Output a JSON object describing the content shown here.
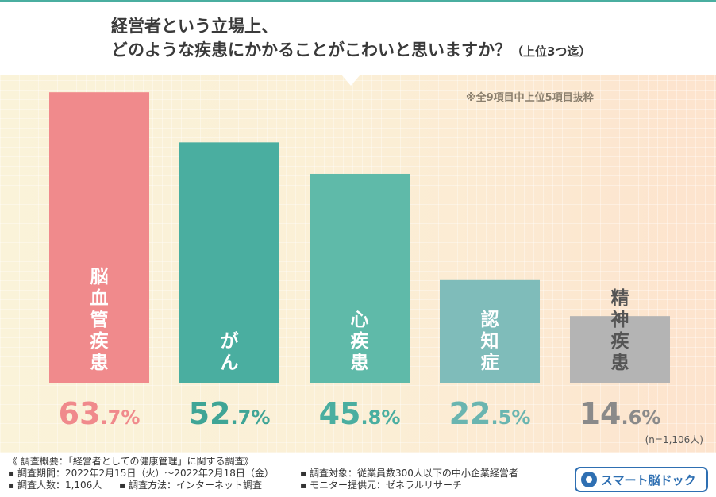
{
  "title": {
    "line1": "経営者という立場上、",
    "line2": "どのような疾患にかかることがこわいと思いますか？",
    "line2_suffix": "（上位3つ迄）"
  },
  "note": "※全9項目中上位5項目抜粋",
  "sample_note": "(n=1,106人)",
  "chart_data": {
    "type": "bar",
    "categories": [
      "脳血管疾患",
      "がん",
      "心疾患",
      "認知症",
      "精神疾患"
    ],
    "values": [
      63.7,
      52.7,
      45.8,
      22.5,
      14.6
    ],
    "value_labels": [
      {
        "int": "63",
        "dec": ".7%"
      },
      {
        "int": "52",
        "dec": ".7%"
      },
      {
        "int": "45",
        "dec": ".8%"
      },
      {
        "int": "22",
        "dec": ".5%"
      },
      {
        "int": "14",
        "dec": ".6%"
      }
    ],
    "bar_colors": [
      "#f08a8c",
      "#4aaea0",
      "#5fbaa9",
      "#7fbcba",
      "#b4b4b4"
    ],
    "label_colors": [
      "#f08a8c",
      "#3fa596",
      "#4aaea0",
      "#6ab5b0",
      "#8a8a8a"
    ],
    "text_colors": [
      "#ffffff",
      "#ffffff",
      "#ffffff",
      "#ffffff",
      "#555555"
    ],
    "ylim": [
      0,
      70
    ]
  },
  "footer": {
    "line1": "《 調査概要：「経営者としての健康管理」に関する調査》",
    "period": "▪ 調査期間：2022年2月15日（火）～2022年2月18日（金）",
    "target": "▪ 調査対象：従業員数300人以下の中小企業経営者",
    "count": "▪ 調査人数：1,106人",
    "method": "▪ 調査方法：インターネット調査",
    "provider": "▪ モニター提供元：ゼネラルリサーチ"
  },
  "logo": {
    "text": "スマート脳ドック"
  }
}
